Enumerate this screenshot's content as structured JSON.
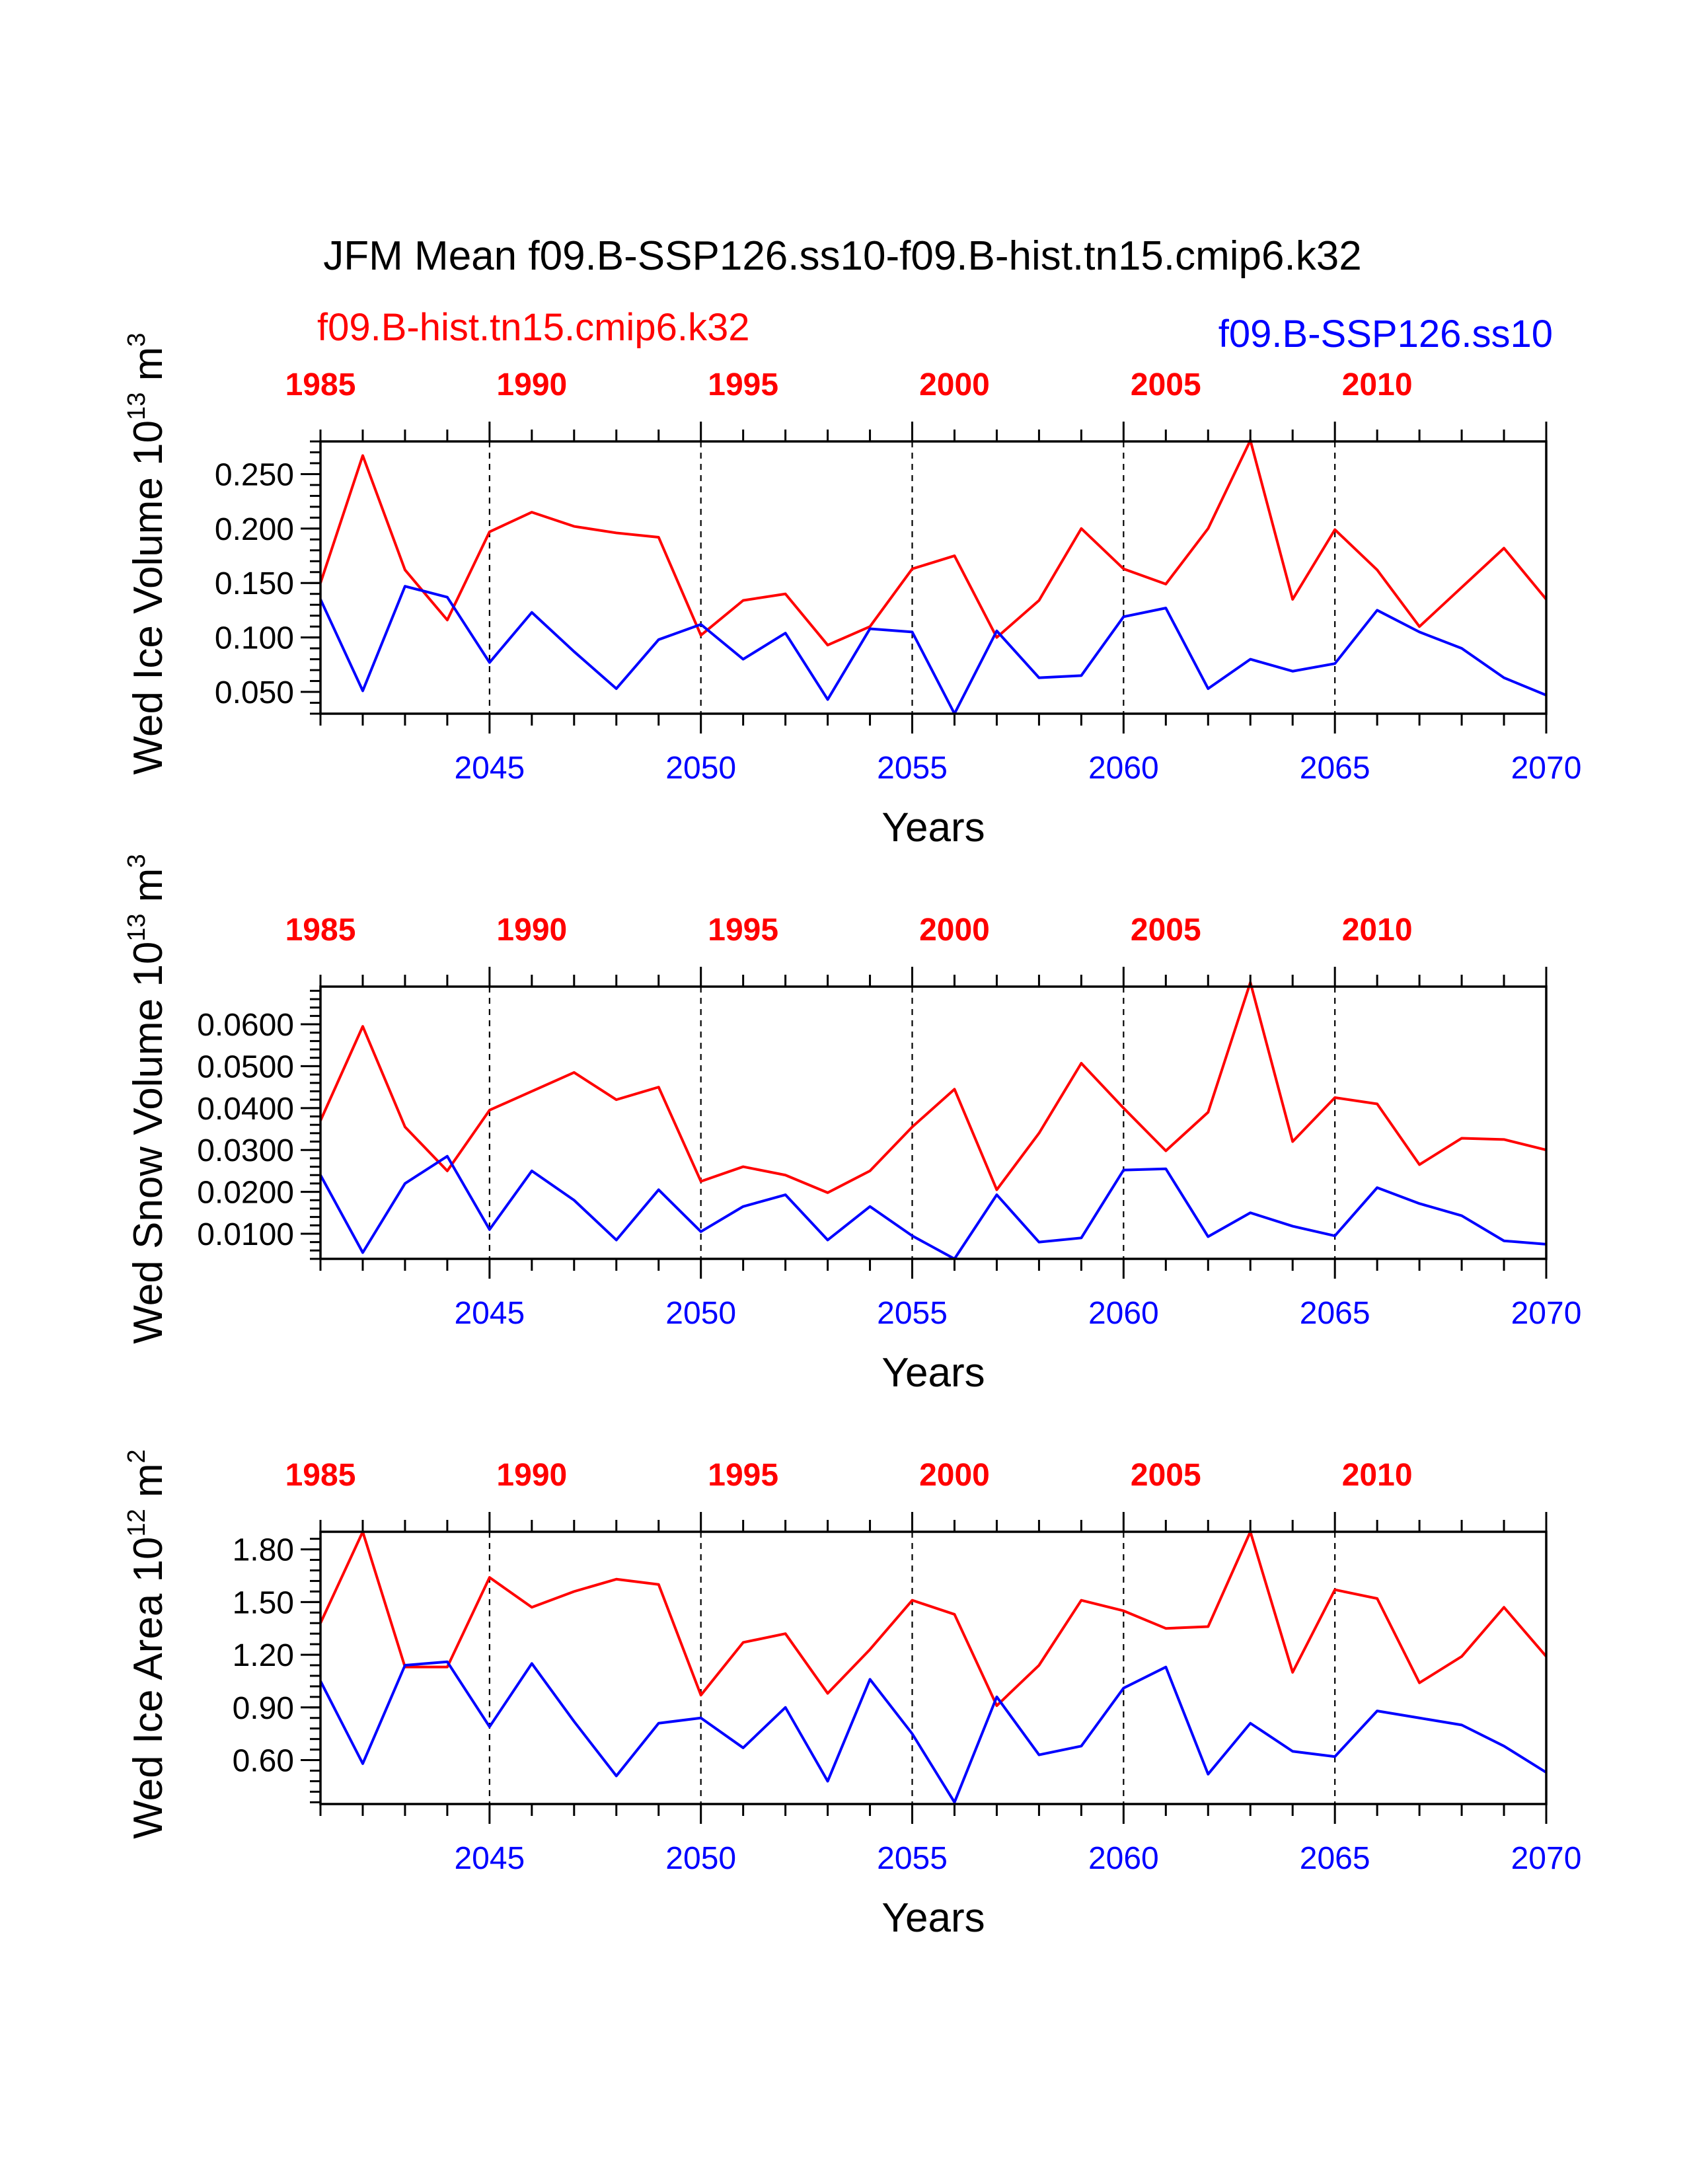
{
  "title": "JFM Mean f09.B-SSP126.ss10-f09.B-hist.tn15.cmip6.k32",
  "legend": {
    "hist_label": "f09.B-hist.tn15.cmip6.k32",
    "ssp_label": "f09.B-SSP126.ss10"
  },
  "colors": {
    "hist": "#ff0000",
    "ssp": "#0000ff",
    "axis": "#000000"
  },
  "chart_data": [
    {
      "type": "line",
      "ylabel": "Wed Ice Volume 10",
      "ylabel_exp": "13",
      "ylabel_unit": "m",
      "ylabel_unit_exp": "3",
      "xlabel": "Years",
      "xlim": [
        2041,
        2070
      ],
      "ylim": [
        0.03,
        0.28
      ],
      "yticks": [
        0.05,
        0.1,
        0.15,
        0.2,
        0.25
      ],
      "ytick_labels": [
        "0.050",
        "0.100",
        "0.150",
        "0.200",
        "0.250"
      ],
      "yminor_step": 0.01,
      "bottom_ticks": [
        2045,
        2050,
        2055,
        2060,
        2065,
        2070
      ],
      "bottom_tick_labels": [
        "2045",
        "2050",
        "2055",
        "2060",
        "2065",
        "2070"
      ],
      "top_ticks": [
        1985,
        1990,
        1995,
        2000,
        2005,
        2010
      ],
      "top_tick_labels": [
        "1985",
        "1990",
        "1995",
        "2000",
        "2005",
        "2010"
      ],
      "top_offset": 56,
      "dashed_lines_x": [
        2045,
        2050,
        2055,
        2060,
        2065
      ],
      "x": [
        2041,
        2042,
        2043,
        2044,
        2045,
        2046,
        2047,
        2048,
        2049,
        2050,
        2051,
        2052,
        2053,
        2054,
        2055,
        2056,
        2057,
        2058,
        2059,
        2060,
        2061,
        2062,
        2063,
        2064,
        2065,
        2066,
        2067,
        2068,
        2069,
        2070
      ],
      "series": [
        {
          "key": "hist",
          "values": [
            0.15,
            0.267,
            0.162,
            0.116,
            0.197,
            0.215,
            0.202,
            0.196,
            0.192,
            0.102,
            0.134,
            0.14,
            0.093,
            0.11,
            0.163,
            0.175,
            0.1,
            0.134,
            0.2,
            0.163,
            0.149,
            0.2,
            0.281,
            0.135,
            0.199,
            0.162,
            0.11,
            0.146,
            0.182,
            0.135
          ]
        },
        {
          "key": "ssp",
          "values": [
            0.135,
            0.051,
            0.147,
            0.137,
            0.077,
            0.123,
            0.087,
            0.053,
            0.098,
            0.112,
            0.08,
            0.104,
            0.043,
            0.108,
            0.105,
            0.03,
            0.106,
            0.063,
            0.065,
            0.119,
            0.127,
            0.053,
            0.08,
            0.069,
            0.076,
            0.125,
            0.105,
            0.09,
            0.063,
            0.047
          ]
        }
      ]
    },
    {
      "type": "line",
      "ylabel": "Wed Snow Volume 10",
      "ylabel_exp": "13",
      "ylabel_unit": "m",
      "ylabel_unit_exp": "3",
      "xlabel": "Years",
      "xlim": [
        2041,
        2070
      ],
      "ylim": [
        0.004,
        0.069
      ],
      "yticks": [
        0.01,
        0.02,
        0.03,
        0.04,
        0.05,
        0.06
      ],
      "ytick_labels": [
        "0.0100",
        "0.0200",
        "0.0300",
        "0.0400",
        "0.0500",
        "0.0600"
      ],
      "yminor_step": 0.002,
      "bottom_ticks": [
        2045,
        2050,
        2055,
        2060,
        2065,
        2070
      ],
      "bottom_tick_labels": [
        "2045",
        "2050",
        "2055",
        "2060",
        "2065",
        "2070"
      ],
      "top_ticks": [
        1985,
        1990,
        1995,
        2000,
        2005,
        2010
      ],
      "top_tick_labels": [
        "1985",
        "1990",
        "1995",
        "2000",
        "2005",
        "2010"
      ],
      "top_offset": 56,
      "dashed_lines_x": [
        2045,
        2050,
        2055,
        2060,
        2065
      ],
      "x": [
        2041,
        2042,
        2043,
        2044,
        2045,
        2046,
        2047,
        2048,
        2049,
        2050,
        2051,
        2052,
        2053,
        2054,
        2055,
        2056,
        2057,
        2058,
        2059,
        2060,
        2061,
        2062,
        2063,
        2064,
        2065,
        2066,
        2067,
        2068,
        2069,
        2070
      ],
      "series": [
        {
          "key": "hist",
          "values": [
            0.037,
            0.0595,
            0.0355,
            0.025,
            0.0395,
            0.044,
            0.0485,
            0.042,
            0.045,
            0.0225,
            0.026,
            0.024,
            0.0198,
            0.025,
            0.0355,
            0.0445,
            0.0205,
            0.034,
            0.0507,
            0.04,
            0.0298,
            0.039,
            0.07,
            0.032,
            0.0425,
            0.041,
            0.0265,
            0.0328,
            0.0325,
            0.03
          ]
        },
        {
          "key": "ssp",
          "values": [
            0.024,
            0.0055,
            0.022,
            0.0285,
            0.011,
            0.025,
            0.018,
            0.0085,
            0.0205,
            0.0105,
            0.0165,
            0.0193,
            0.0085,
            0.0165,
            0.0095,
            0.004,
            0.0193,
            0.008,
            0.009,
            0.0252,
            0.0255,
            0.0093,
            0.015,
            0.0118,
            0.0095,
            0.021,
            0.0172,
            0.0143,
            0.0083,
            0.0075
          ]
        }
      ]
    },
    {
      "type": "line",
      "ylabel": "Wed Ice Area 10",
      "ylabel_exp": "12",
      "ylabel_unit": "m",
      "ylabel_unit_exp": "2",
      "xlabel": "Years",
      "xlim": [
        2041,
        2070
      ],
      "ylim": [
        0.35,
        1.9
      ],
      "yticks": [
        0.6,
        0.9,
        1.2,
        1.5,
        1.8
      ],
      "ytick_labels": [
        "0.60",
        "0.90",
        "1.20",
        "1.50",
        "1.80"
      ],
      "yminor_step": 0.06,
      "bottom_ticks": [
        2045,
        2050,
        2055,
        2060,
        2065,
        2070
      ],
      "bottom_tick_labels": [
        "2045",
        "2050",
        "2055",
        "2060",
        "2065",
        "2070"
      ],
      "top_ticks": [
        1985,
        1990,
        1995,
        2000,
        2005,
        2010
      ],
      "top_tick_labels": [
        "1985",
        "1990",
        "1995",
        "2000",
        "2005",
        "2010"
      ],
      "top_offset": 56,
      "dashed_lines_x": [
        2045,
        2050,
        2055,
        2060,
        2065
      ],
      "x": [
        2041,
        2042,
        2043,
        2044,
        2045,
        2046,
        2047,
        2048,
        2049,
        2050,
        2051,
        2052,
        2053,
        2054,
        2055,
        2056,
        2057,
        2058,
        2059,
        2060,
        2061,
        2062,
        2063,
        2064,
        2065,
        2066,
        2067,
        2068,
        2069,
        2070
      ],
      "series": [
        {
          "key": "hist",
          "values": [
            1.38,
            1.9,
            1.13,
            1.13,
            1.64,
            1.47,
            1.56,
            1.63,
            1.6,
            0.97,
            1.27,
            1.32,
            0.98,
            1.23,
            1.51,
            1.43,
            0.91,
            1.14,
            1.51,
            1.45,
            1.35,
            1.36,
            1.9,
            1.1,
            1.57,
            1.52,
            1.04,
            1.19,
            1.47,
            1.19
          ]
        },
        {
          "key": "ssp",
          "values": [
            1.05,
            0.58,
            1.14,
            1.16,
            0.79,
            1.15,
            0.82,
            0.51,
            0.81,
            0.84,
            0.67,
            0.9,
            0.48,
            1.06,
            0.75,
            0.36,
            0.96,
            0.63,
            0.68,
            1.01,
            1.13,
            0.52,
            0.81,
            0.65,
            0.62,
            0.88,
            0.84,
            0.8,
            0.68,
            0.53
          ]
        }
      ]
    }
  ]
}
